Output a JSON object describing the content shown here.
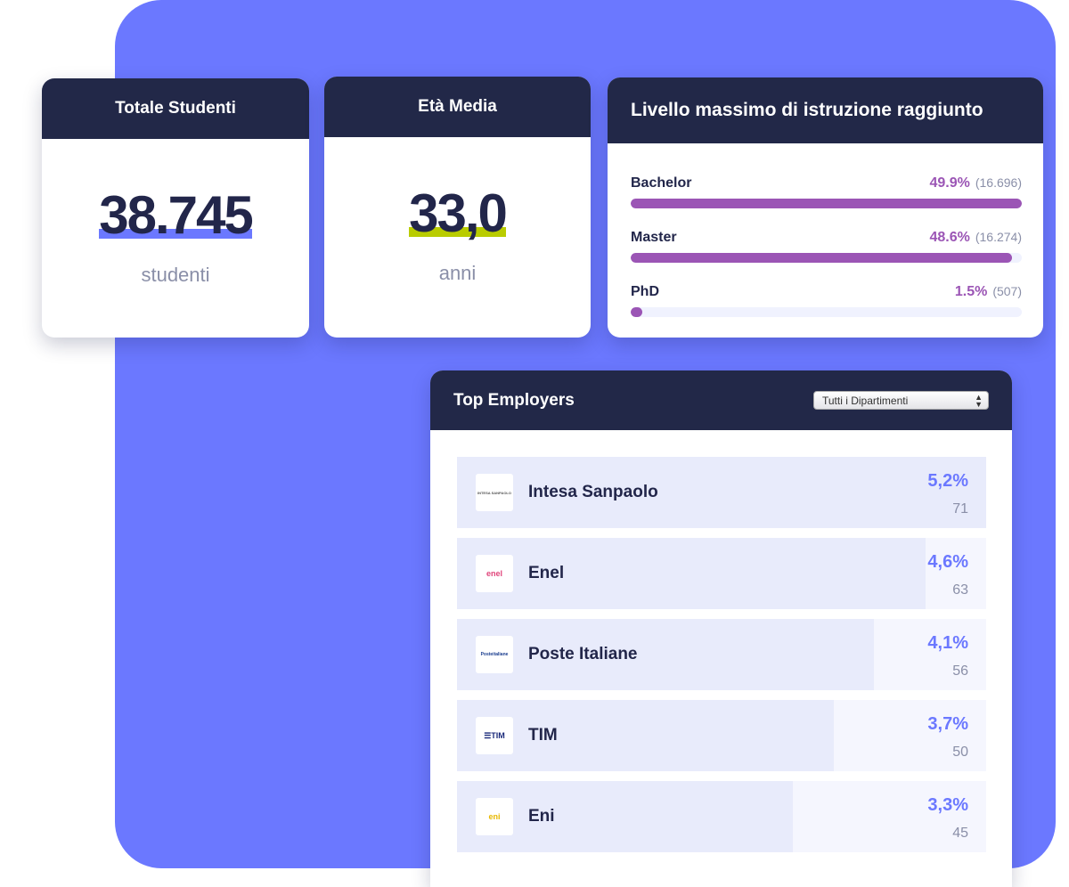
{
  "colors": {
    "background": "#6b78ff",
    "header": "#222848",
    "edu_bar": "#9b55b5",
    "students_underline": "#6b78ff",
    "age_underline": "#b9cc00",
    "employer_pct": "#6b78ff"
  },
  "students": {
    "title": "Totale Studenti",
    "value": "38.745",
    "unit": "studenti"
  },
  "age": {
    "title": "Età Media",
    "value": "33,0",
    "unit": "anni"
  },
  "education": {
    "title": "Livello massimo di istruzione raggiunto",
    "items": [
      {
        "label": "Bachelor",
        "pct": "49.9%",
        "count": "(16.696)",
        "fill": 100
      },
      {
        "label": "Master",
        "pct": "48.6%",
        "count": "(16.274)",
        "fill": 97.4
      },
      {
        "label": "PhD",
        "pct": "1.5%",
        "count": "(507)",
        "fill": 3
      }
    ]
  },
  "employers": {
    "title": "Top Employers",
    "filter": "Tutti i Dipartimenti",
    "items": [
      {
        "name": "Intesa Sanpaolo",
        "pct": "5,2%",
        "count": "71",
        "fill": 100,
        "logo": "INTESA SANPAOLO",
        "logo_color": "#555"
      },
      {
        "name": "Enel",
        "pct": "4,6%",
        "count": "63",
        "fill": 88.5,
        "logo": "enel",
        "logo_color": "#e0457b"
      },
      {
        "name": "Poste Italiane",
        "pct": "4,1%",
        "count": "56",
        "fill": 78.8,
        "logo": "Posteitaliane",
        "logo_color": "#1a3d8f"
      },
      {
        "name": "TIM",
        "pct": "3,7%",
        "count": "50",
        "fill": 71.2,
        "logo": "☰TIM",
        "logo_color": "#1a2a7a"
      },
      {
        "name": "Eni",
        "pct": "3,3%",
        "count": "45",
        "fill": 63.5,
        "logo": "eni",
        "logo_color": "#e8b800"
      }
    ]
  }
}
